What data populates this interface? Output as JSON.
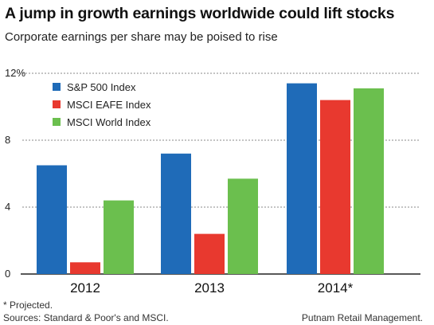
{
  "header": {
    "title": "A jump in growth earnings worldwide could lift stocks",
    "subtitle": "Corporate earnings per share may be poised to rise"
  },
  "footer": {
    "note": "* Projected.",
    "sources": "Sources: Standard & Poor's and MSCI.",
    "credit": "Putnam Retail Management."
  },
  "chart_data": {
    "type": "bar",
    "title": "A jump in growth earnings worldwide could lift stocks",
    "subtitle": "Corporate earnings per share may be poised to rise",
    "categories": [
      "2012",
      "2013",
      "2014*"
    ],
    "series": [
      {
        "name": "S&P 500 Index",
        "color": "#1f6bb8",
        "values": [
          6.5,
          7.2,
          11.4
        ]
      },
      {
        "name": "MSCI EAFE Index",
        "color": "#e8392f",
        "values": [
          0.7,
          2.4,
          10.4
        ]
      },
      {
        "name": "MSCI World Index",
        "color": "#6bbf4e",
        "values": [
          4.4,
          5.7,
          11.1
        ]
      }
    ],
    "ylim": [
      0,
      12
    ],
    "yticks": [
      {
        "value": 0,
        "label": "0"
      },
      {
        "value": 4,
        "label": "4"
      },
      {
        "value": 8,
        "label": "8"
      },
      {
        "value": 12,
        "label": "12%"
      }
    ],
    "xlabel": "",
    "ylabel": "",
    "grid": true,
    "legend_position": "top-left"
  }
}
